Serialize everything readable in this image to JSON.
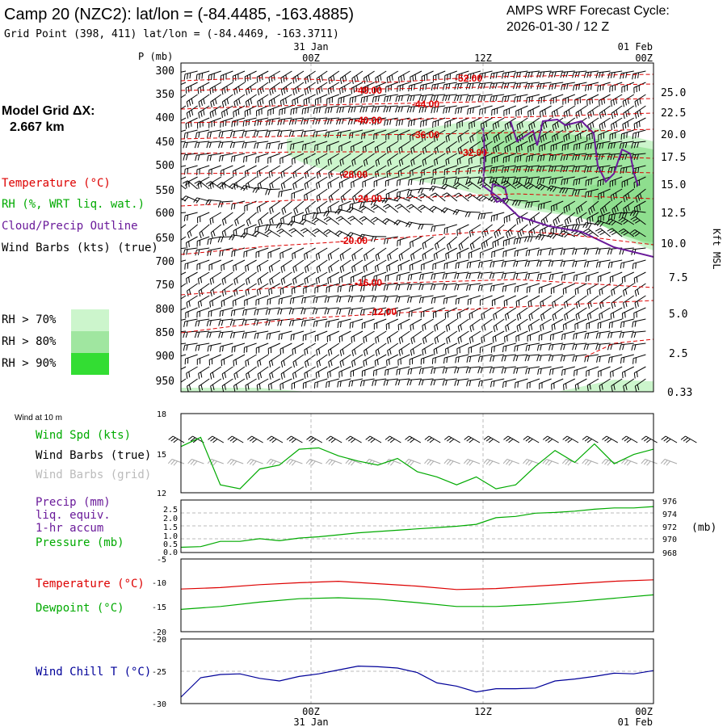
{
  "header": {
    "title": "Camp 20 (NZC2):  lat/lon = (-84.4485, -163.4885)",
    "subtitle": "Grid Point (398, 411) lat/lon = (-84.4469, -163.3711)",
    "cycle_line1": "AMPS WRF Forecast Cycle:",
    "cycle_line2": "2026-01-30 / 12  Z"
  },
  "time_axis": {
    "top_dates": [
      "31 Jan",
      "01 Feb"
    ],
    "labels": [
      "00Z",
      "12Z",
      "00Z"
    ],
    "bottom_dates": [
      "31 Jan",
      "01 Feb"
    ]
  },
  "profile": {
    "p_title": "P (mb)",
    "pressure_levels": [
      "300",
      "350",
      "400",
      "450",
      "500",
      "550",
      "600",
      "650",
      "700",
      "750",
      "800",
      "850",
      "900",
      "950"
    ],
    "height_ticks": [
      "25.0",
      "22.5",
      "20.0",
      "17.5",
      "15.0",
      "12.5",
      "10.0",
      "7.5",
      "5.0",
      "2.5",
      "0.33"
    ],
    "right_axis_label": "Kft MSL",
    "temp_labels": [
      "-52.00",
      "-48.00",
      "-44.00",
      "-40.00",
      "-36.00",
      "-32.00",
      "-28.00",
      "-24.00",
      "-20.00",
      "-16.00",
      "-12.00"
    ]
  },
  "left_legend": {
    "grid_line1": "Model Grid ΔX:",
    "grid_line2": "2.667 km",
    "temperature": "Temperature (°C)",
    "rh": "RH (%, WRT liq. wat.)",
    "cloud": "Cloud/Precip Outline",
    "barbs": "Wind Barbs (kts) (true)",
    "rh70": "RH > 70%",
    "rh80": "RH > 80%",
    "rh90": "RH > 90%"
  },
  "wind_panel": {
    "header": "Wind at 10 m",
    "spd_label": "Wind Spd (kts)",
    "barbs_true": "Wind Barbs (true)",
    "barbs_grid": "Wind Barbs (grid)",
    "y_ticks": [
      "18",
      "15",
      "12"
    ]
  },
  "precip_panel": {
    "precip_label": "Precip (mm)",
    "liq_label": "liq. equiv.",
    "accum_label": "1-hr accum",
    "pressure_label": "Pressure (mb)",
    "mb_unit": "(mb)",
    "left_ticks": [
      "2.5",
      "2.0",
      "1.5",
      "1.0",
      "0.5",
      "0.0"
    ],
    "right_ticks": [
      "976",
      "974",
      "972",
      "970",
      "968"
    ]
  },
  "temp_panel": {
    "temp_label": "Temperature (°C)",
    "dew_label": "Dewpoint (°C)",
    "ticks": [
      "-5",
      "-10",
      "-15",
      "-20"
    ]
  },
  "chill_panel": {
    "label": "Wind Chill T (°C)",
    "ticks": [
      "-20",
      "-25",
      "-30"
    ]
  },
  "colors": {
    "temperature": "#dd0000",
    "rh_text": "#00aa00",
    "cloud": "#6a1a9a",
    "rh70": "#ccf5cc",
    "rh80": "#a0e6a0",
    "rh90": "#33dd33",
    "chill": "#000099"
  },
  "chart_data": [
    {
      "type": "line",
      "title": "Wind Spd (kts) at 10 m",
      "x_hours": [
        0,
        2,
        4,
        6,
        8,
        10,
        12,
        14,
        16,
        18,
        20,
        22,
        24,
        26,
        28,
        30,
        32,
        34,
        36,
        38,
        40,
        42,
        44,
        46,
        48
      ],
      "values": [
        15.5,
        16.2,
        12.6,
        12.3,
        13.8,
        14.1,
        15.3,
        15.4,
        14.8,
        14.4,
        14.1,
        14.6,
        13.6,
        13.2,
        12.6,
        13.2,
        12.3,
        12.6,
        14.0,
        15.2,
        14.3,
        15.7,
        14.2,
        14.9,
        15.3
      ],
      "ylim": [
        12,
        18
      ]
    },
    {
      "type": "line",
      "title": "Pressure (mb)",
      "x_hours": [
        0,
        2,
        4,
        6,
        8,
        10,
        12,
        14,
        16,
        18,
        20,
        22,
        24,
        26,
        28,
        30,
        32,
        34,
        36,
        38,
        40,
        42,
        44,
        46,
        48
      ],
      "values": [
        968.8,
        968.9,
        969.7,
        969.7,
        970.1,
        969.8,
        970.2,
        970.4,
        970.7,
        971.0,
        971.2,
        971.4,
        971.6,
        971.8,
        972.0,
        972.3,
        973.3,
        973.5,
        974.0,
        974.1,
        974.3,
        974.6,
        974.8,
        974.8,
        975.0
      ],
      "ylim": [
        968,
        976
      ]
    },
    {
      "type": "line",
      "title": "Temperature and Dewpoint (°C)",
      "x_hours": [
        0,
        4,
        8,
        12,
        16,
        20,
        24,
        28,
        32,
        36,
        40,
        44,
        48
      ],
      "series": [
        {
          "name": "Temperature",
          "values": [
            -11.2,
            -10.9,
            -10.3,
            -9.9,
            -9.6,
            -10.1,
            -10.6,
            -11.3,
            -11.1,
            -10.6,
            -10.1,
            -9.6,
            -9.3
          ]
        },
        {
          "name": "Dewpoint",
          "values": [
            -15.4,
            -14.8,
            -13.9,
            -13.2,
            -13.0,
            -13.3,
            -14.0,
            -14.8,
            -14.8,
            -14.4,
            -13.8,
            -13.1,
            -12.4
          ]
        }
      ],
      "ylim": [
        -20,
        -5
      ]
    },
    {
      "type": "line",
      "title": "Wind Chill T (°C)",
      "x_hours": [
        0,
        2,
        4,
        6,
        8,
        10,
        12,
        14,
        16,
        18,
        20,
        22,
        24,
        26,
        28,
        30,
        32,
        34,
        36,
        38,
        40,
        42,
        44,
        46,
        48
      ],
      "values": [
        -29.0,
        -26.0,
        -25.5,
        -25.4,
        -26.1,
        -26.5,
        -25.8,
        -25.4,
        -24.8,
        -24.2,
        -24.3,
        -24.5,
        -25.2,
        -26.8,
        -27.3,
        -28.2,
        -27.7,
        -27.7,
        -27.6,
        -26.5,
        -26.2,
        -25.8,
        -25.3,
        -25.4,
        -24.9
      ],
      "ylim": [
        -30,
        -20
      ]
    }
  ]
}
